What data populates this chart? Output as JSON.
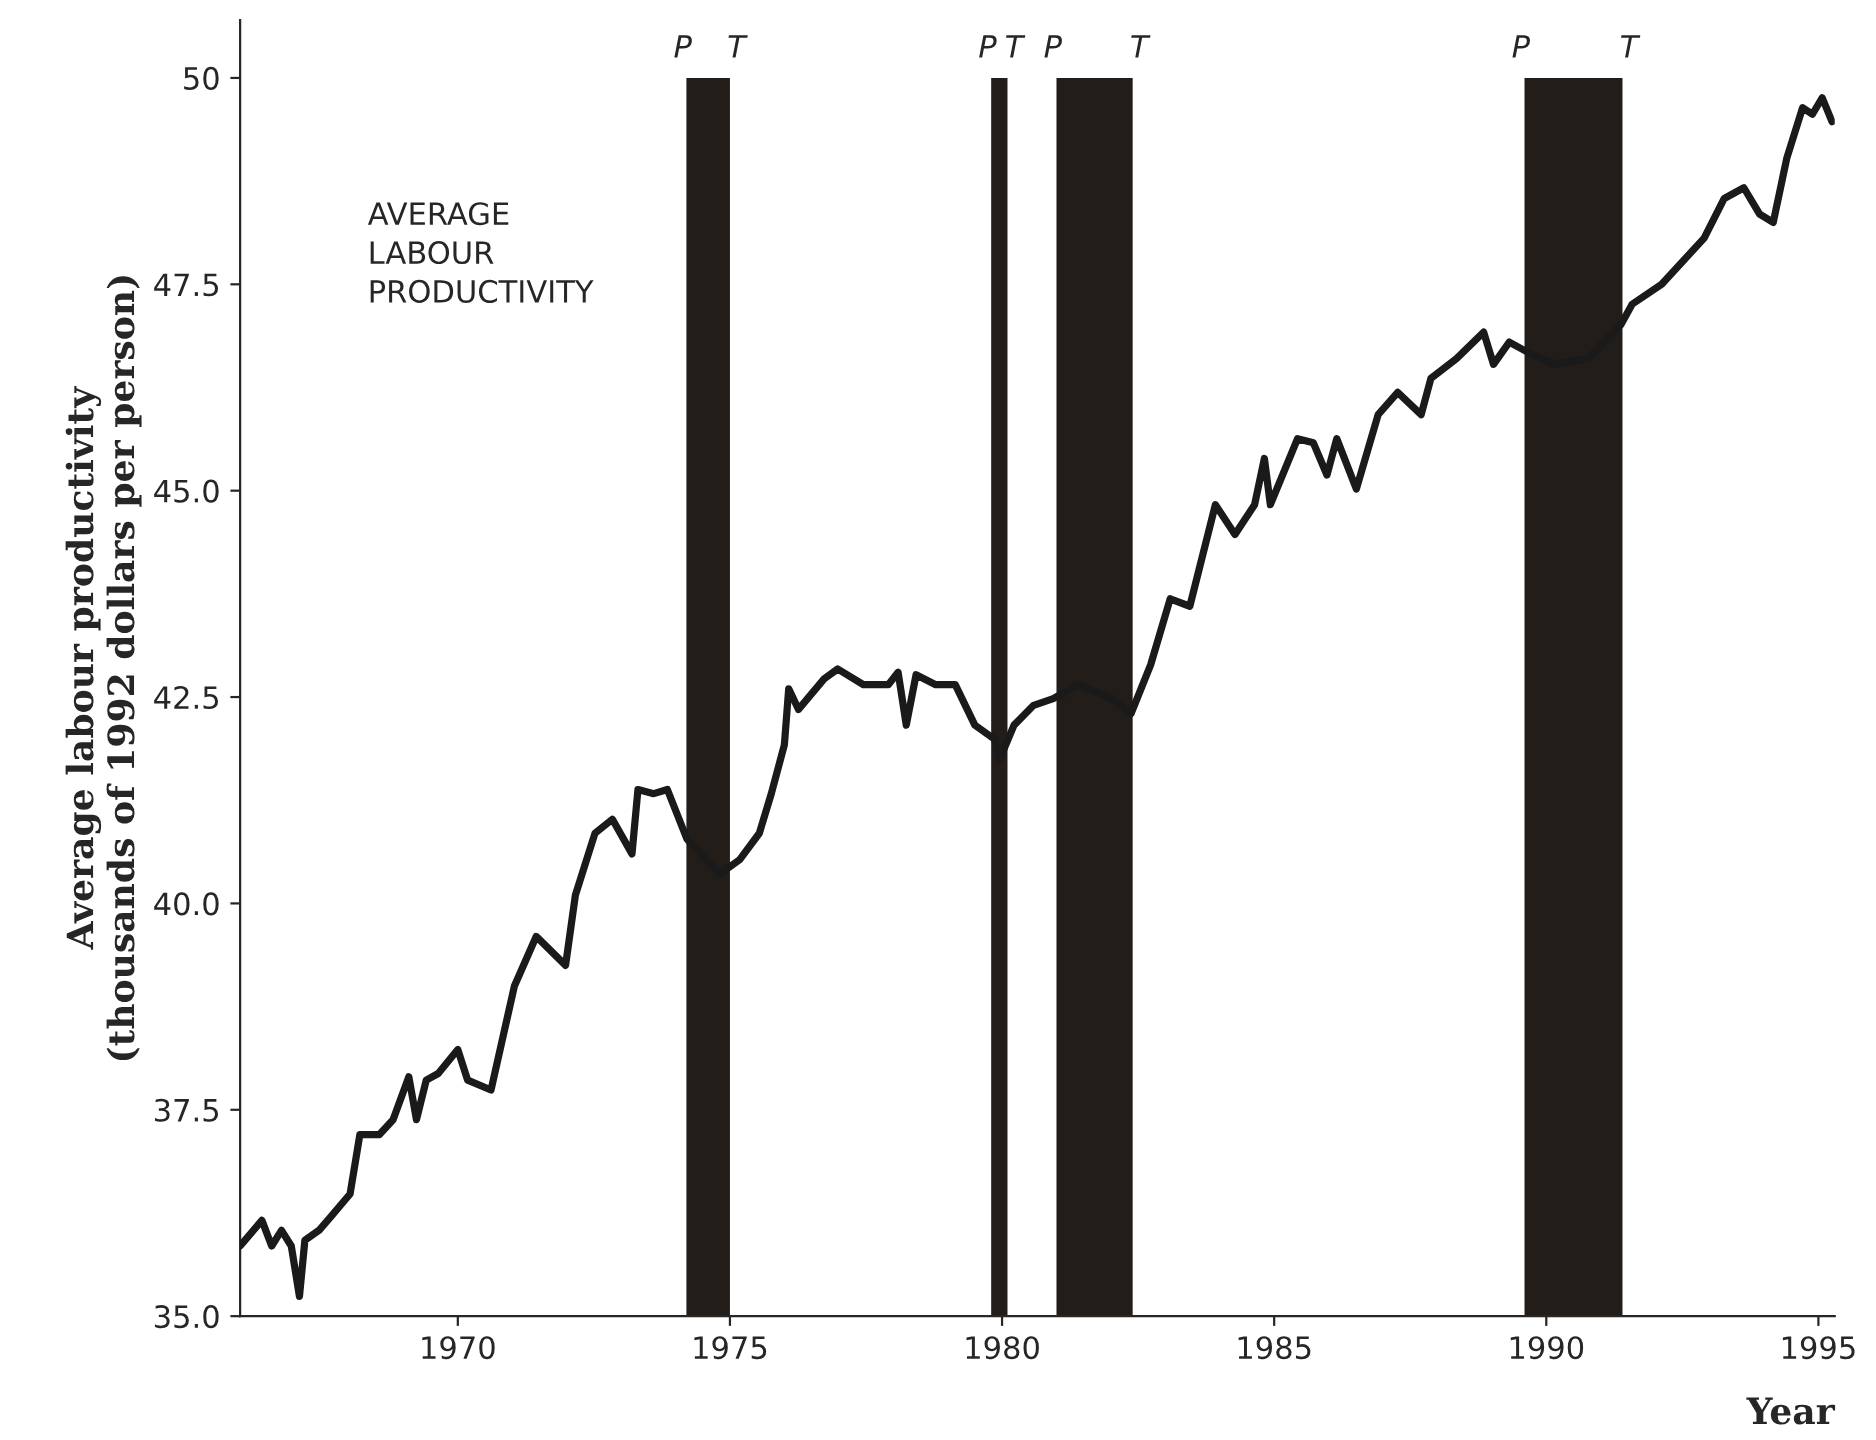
{
  "chart_data": {
    "type": "line",
    "ylabel": "Average labour productivity\n(thousands of 1992 dollars per person)",
    "xlabel": "Year",
    "xlim": [
      1966,
      1995.3
    ],
    "xticks": [
      1970,
      1975,
      1980,
      1985,
      1990,
      1995
    ],
    "ylim": [
      35,
      50.7
    ],
    "yticks": [
      {
        "value": 35,
        "label": "35.0"
      },
      {
        "value": 37.5,
        "label": "37.5"
      },
      {
        "value": 40,
        "label": "40.0"
      },
      {
        "value": 42.5,
        "label": "42.5"
      },
      {
        "value": 45,
        "label": "45.0"
      },
      {
        "value": 47.5,
        "label": "47.5"
      },
      {
        "value": 50,
        "label": "50"
      }
    ],
    "grid": false,
    "series": [
      {
        "color": "#1a1a1a",
        "x": [
          1966.0,
          1966.4,
          1966.58,
          1966.76,
          1966.94,
          1967.09,
          1967.19,
          1967.45,
          1967.66,
          1968.02,
          1968.2,
          1968.56,
          1968.81,
          1969.1,
          1969.24,
          1969.42,
          1969.64,
          1970.0,
          1970.18,
          1970.61,
          1971.04,
          1971.44,
          1971.98,
          1972.16,
          1972.52,
          1972.84,
          1973.2,
          1973.31,
          1973.6,
          1973.85,
          1974.21,
          1974.57,
          1974.82,
          1975.18,
          1975.54,
          1975.76,
          1976.0,
          1976.08,
          1976.26,
          1976.73,
          1976.98,
          1977.45,
          1977.91,
          1978.09,
          1978.24,
          1978.42,
          1978.78,
          1979.14,
          1979.5,
          1979.86,
          1979.96,
          1980.22,
          1980.58,
          1980.94,
          1981.4,
          1982.01,
          1982.37,
          1982.73,
          1983.09,
          1983.45,
          1983.92,
          1984.28,
          1984.64,
          1984.82,
          1984.93,
          1985.43,
          1985.72,
          1985.97,
          1986.15,
          1986.51,
          1986.91,
          1987.27,
          1987.7,
          1987.88,
          1988.35,
          1988.85,
          1989.03,
          1989.32,
          1989.68,
          1990.14,
          1990.76,
          1991.37,
          1991.58,
          1992.12,
          1992.9,
          1993.27,
          1993.63,
          1993.92,
          1994.17,
          1994.42,
          1994.71,
          1994.89,
          1995.07,
          1995.25
        ],
        "values": [
          35.85,
          36.16,
          35.85,
          36.04,
          35.85,
          35.24,
          35.92,
          36.04,
          36.2,
          36.48,
          37.2,
          37.2,
          37.38,
          37.9,
          37.38,
          37.86,
          37.94,
          38.23,
          37.86,
          37.74,
          39.0,
          39.6,
          39.25,
          40.1,
          40.85,
          41.02,
          40.6,
          41.38,
          41.33,
          41.38,
          40.78,
          40.53,
          40.36,
          40.53,
          40.85,
          41.33,
          41.92,
          42.6,
          42.35,
          42.72,
          42.84,
          42.65,
          42.65,
          42.8,
          42.16,
          42.77,
          42.65,
          42.65,
          42.16,
          41.99,
          41.75,
          42.16,
          42.4,
          42.48,
          42.65,
          42.48,
          42.3,
          42.89,
          43.69,
          43.6,
          44.83,
          44.47,
          44.83,
          45.39,
          44.83,
          45.63,
          45.58,
          45.19,
          45.63,
          45.02,
          45.92,
          46.19,
          45.92,
          46.36,
          46.6,
          46.92,
          46.53,
          46.8,
          46.67,
          46.53,
          46.6,
          47.01,
          47.26,
          47.5,
          48.06,
          48.54,
          48.67,
          48.35,
          48.25,
          49.03,
          49.64,
          49.56,
          49.76,
          49.47
        ]
      }
    ],
    "bands": [
      {
        "axis": "x",
        "from": 1974.2,
        "to": 1975.0,
        "color": "#231d1a"
      },
      {
        "axis": "x",
        "from": 1979.8,
        "to": 1980.1,
        "color": "#231d1a"
      },
      {
        "axis": "x",
        "from": 1981.0,
        "to": 1982.4,
        "color": "#231d1a"
      },
      {
        "axis": "x",
        "from": 1989.6,
        "to": 1991.4,
        "color": "#231d1a"
      }
    ],
    "annotations": [
      "AVERAGE\nLABOUR\nPRODUCTIVITY",
      "P",
      "T",
      "P",
      "T",
      "P",
      "T",
      "P",
      "T"
    ]
  }
}
